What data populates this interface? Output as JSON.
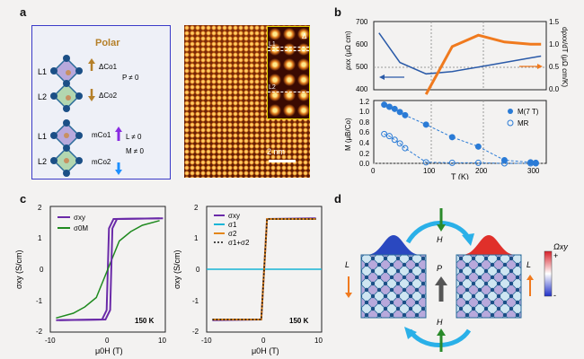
{
  "panels": {
    "a": "a",
    "b": "b",
    "c": "c",
    "d": "d"
  },
  "panel_a": {
    "title": "Polar",
    "layer_top": "L1",
    "layer_bottom": "L2",
    "layer_top2": "L1",
    "layer_bottom2": "L2",
    "delta_co1": "ΔCo1",
    "delta_co2": "ΔCo2",
    "p_ne_0": "P ≠ 0",
    "m_co1": "mCo1",
    "m_co2": "mCo2",
    "l_ne_0": "L ≠ 0",
    "M_ne_0": "M ≠ 0",
    "scale_bar": "2 nm",
    "inset_delta": "Δ",
    "inset_L1": "L1",
    "inset_L2": "L2",
    "colors": {
      "brown": "#b5802a",
      "purple": "#8a2be2",
      "blue": "#1e90ff"
    }
  },
  "panel_b_top": {
    "ylabel_left": "ρxx (μΩ cm)",
    "ylabel_right": "dρxx/dT (μΩ cm/K)",
    "yticks_left": [
      "400",
      "500",
      "600",
      "700"
    ],
    "yticks_right": [
      "0.0",
      "0.5",
      "1.0",
      "1.5"
    ],
    "colors": {
      "rho": "#2a5aa8",
      "drho": "#f07a1e"
    }
  },
  "panel_b_bottom": {
    "ylabel": "M (μB/Co)",
    "xlabel": "T (K)",
    "yticks": [
      "0.0",
      "0.2",
      "0.4",
      "0.6",
      "0.8",
      "1.0",
      "1.2"
    ],
    "xticks": [
      "0",
      "100",
      "200",
      "300"
    ],
    "legend_filled": "M(7 T)",
    "legend_open": "MR",
    "color": "#2a7bd6"
  },
  "panel_c_left": {
    "ylabel": "σxy (S/cm)",
    "xlabel": "μ0H (T)",
    "yticks": [
      "-2",
      "-1",
      "0",
      "1",
      "2"
    ],
    "xticks": [
      "-10",
      "0",
      "10"
    ],
    "legend": [
      "σxy",
      "σ0M"
    ],
    "temp": "150 K",
    "colors": {
      "sxy": "#6a2aa8",
      "s0m": "#1f8a1f"
    }
  },
  "panel_c_right": {
    "ylabel": "σxy (S/cm)",
    "xlabel": "μ0H (T)",
    "yticks": [
      "-2",
      "-1",
      "0",
      "1",
      "2"
    ],
    "xticks": [
      "-10",
      "0",
      "10"
    ],
    "legend": [
      "σxy",
      "σ1",
      "σ2",
      "σ1+σ2"
    ],
    "temp": "150 K",
    "colors": {
      "sxy": "#6a2aa8",
      "s1": "#18b5d6",
      "s2": "#e3861a",
      "sum": "#111111"
    }
  },
  "panel_d": {
    "H_top": "H",
    "H_bottom": "H",
    "P": "P",
    "L_left": "L",
    "L_right": "L",
    "omega": "Ωxy",
    "plus": "+",
    "minus": "-"
  },
  "chart_data": [
    {
      "type": "line",
      "panel": "b-top",
      "x": [
        10,
        50,
        100,
        150,
        200,
        250,
        300,
        320
      ],
      "series": [
        {
          "name": "ρxx",
          "values": [
            650,
            520,
            470,
            480,
            500,
            520,
            540,
            548
          ]
        },
        {
          "name": "dρxx/dT",
          "values": [
            null,
            null,
            -0.1,
            0.95,
            1.2,
            1.05,
            1.0,
            1.0
          ]
        }
      ],
      "xlim": [
        0,
        330
      ],
      "ylim_left": [
        400,
        700
      ],
      "ylim_right": [
        0,
        1.5
      ],
      "grid": false
    },
    {
      "type": "scatter",
      "panel": "b-bottom",
      "series": [
        {
          "name": "M(7 T)",
          "x": [
            20,
            30,
            40,
            50,
            60,
            100,
            150,
            200,
            250,
            300,
            310
          ],
          "values": [
            1.12,
            1.08,
            1.04,
            0.98,
            0.92,
            0.74,
            0.5,
            0.32,
            0.06,
            0.02,
            0.01
          ]
        },
        {
          "name": "MR",
          "x": [
            20,
            30,
            40,
            50,
            60,
            100,
            150,
            200,
            250,
            300,
            310
          ],
          "values": [
            0.56,
            0.52,
            0.45,
            0.38,
            0.29,
            0.02,
            0.01,
            0.01,
            0.0,
            0.0,
            0.0
          ]
        }
      ],
      "xlim": [
        0,
        330
      ],
      "ylim": [
        0,
        1.2
      ]
    },
    {
      "type": "line",
      "panel": "c-left",
      "xlim": [
        -10,
        10
      ],
      "ylim": [
        -2,
        2
      ],
      "series": [
        {
          "name": "σxy",
          "x": [
            -9,
            -1,
            -0.2,
            0.2,
            1,
            9
          ],
          "values": [
            -1.62,
            -1.6,
            -1.3,
            1.3,
            1.6,
            1.62
          ]
        },
        {
          "name": "σ0M",
          "x": [
            -9,
            -6,
            -4,
            -2,
            0,
            2,
            4,
            6,
            9
          ],
          "values": [
            -1.55,
            -1.4,
            -1.2,
            -0.9,
            0,
            0.9,
            1.2,
            1.4,
            1.55
          ]
        }
      ]
    },
    {
      "type": "line",
      "panel": "c-right",
      "xlim": [
        -10,
        10
      ],
      "ylim": [
        -2,
        2
      ],
      "series": [
        {
          "name": "σxy",
          "x": [
            -9,
            -0.5,
            0.5,
            9
          ],
          "values": [
            -1.62,
            -1.6,
            1.6,
            1.62
          ]
        },
        {
          "name": "σ1",
          "x": [
            -10,
            10
          ],
          "values": [
            0,
            0
          ]
        },
        {
          "name": "σ2",
          "x": [
            -9,
            -0.5,
            0.5,
            9
          ],
          "values": [
            -1.6,
            -1.6,
            1.6,
            1.6
          ]
        },
        {
          "name": "σ1+σ2",
          "x": [
            -9,
            -0.5,
            0.5,
            9
          ],
          "values": [
            -1.6,
            -1.6,
            1.6,
            1.6
          ]
        }
      ]
    }
  ]
}
